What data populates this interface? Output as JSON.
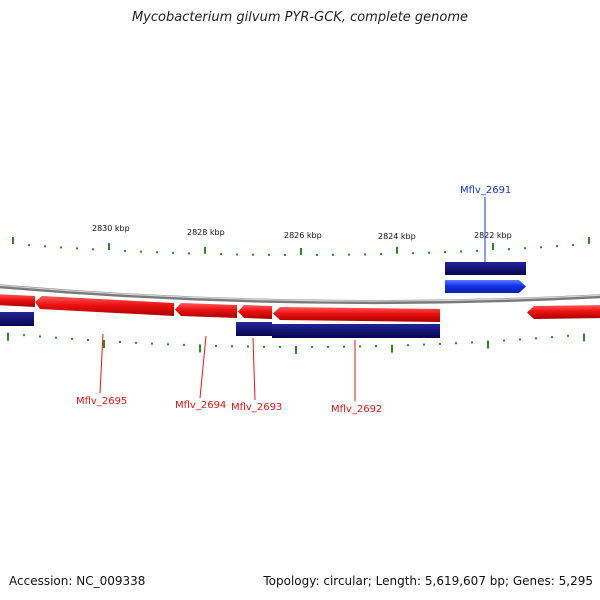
{
  "title": "Mycobacterium gilvum PYR-GCK, complete genome",
  "footer": {
    "accession": "Accession: NC_009338",
    "topology": "Topology: circular; Length: 5,619,607 bp; Genes: 5,295"
  },
  "scale_labels": [
    "2830 kbp",
    "2828 kbp",
    "2826 kbp",
    "2824 kbp",
    "2822 kbp"
  ],
  "gene_labels": {
    "top": [
      "Mflv_2691"
    ],
    "bottom": [
      "Mflv_2695",
      "Mflv_2694",
      "Mflv_2693",
      "Mflv_2692"
    ]
  },
  "colors": {
    "forward_gene": "#1133ee",
    "reverse_gene": "#ee1111",
    "cds": "#0d0d7a",
    "backbone": "#888888",
    "ticks": "#2a8a2a"
  }
}
